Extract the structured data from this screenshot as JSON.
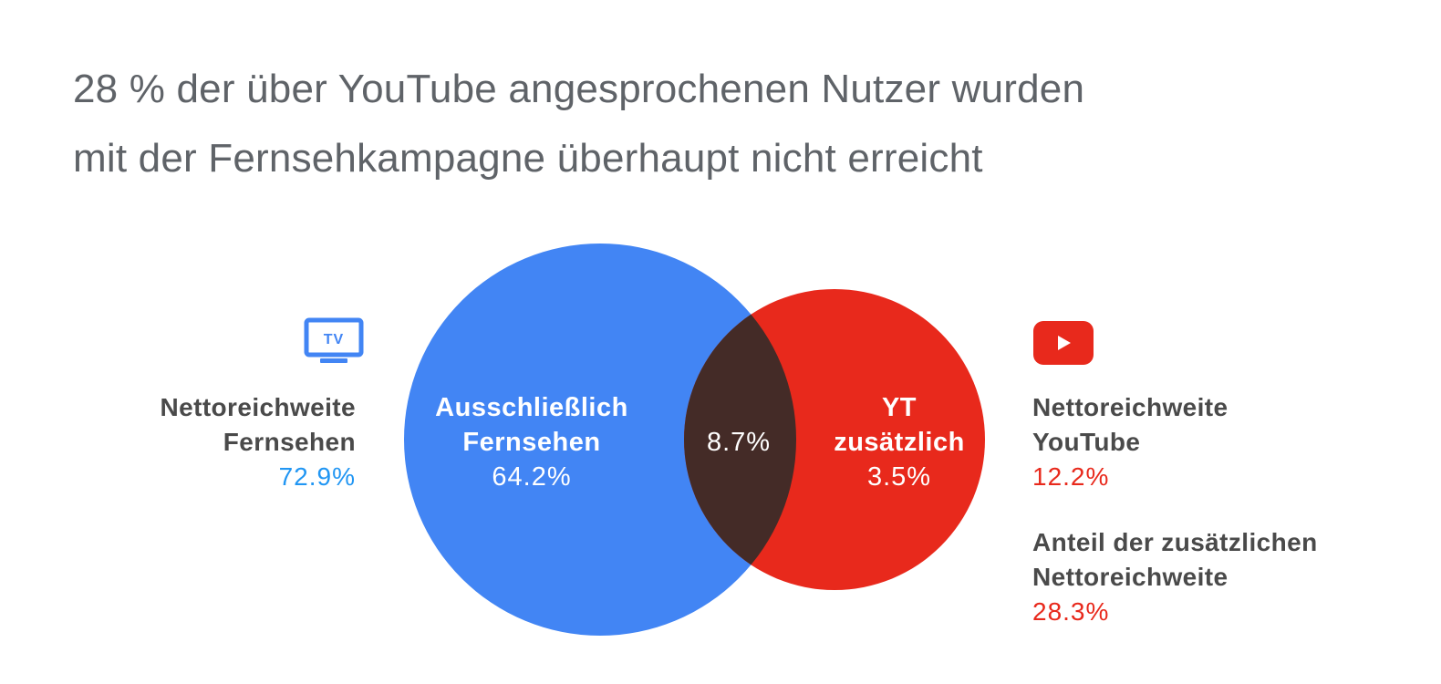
{
  "title": {
    "line1": "28 % der über YouTube angesprochenen Nutzer wurden",
    "line2": "mit der Fernsehkampagne überhaupt nicht erreicht"
  },
  "colors": {
    "tv_blue": "#4285f4",
    "yt_red": "#e8291c",
    "overlap": "#442b27",
    "text_gray": "#4a4a4a",
    "title_gray": "#5f6368"
  },
  "tv_icon": {
    "name": "tv-icon",
    "label": "TV"
  },
  "yt_icon": {
    "name": "youtube-play-icon"
  },
  "venn": {
    "tv_only": {
      "line1": "Ausschließlich",
      "line2": "Fernsehen",
      "value": "64.2%"
    },
    "overlap": {
      "value": "8.7%"
    },
    "yt_only": {
      "line1": "YT",
      "line2": "zusätzlich",
      "value": "3.5%"
    }
  },
  "left_info": {
    "line1": "Nettoreichweite",
    "line2": "Fernsehen",
    "value": "72.9%"
  },
  "right_info": {
    "line1": "Nettoreichweite",
    "line2": "YouTube",
    "value": "12.2%"
  },
  "right_info2": {
    "line1": "Anteil der zusätzlichen",
    "line2": "Nettoreichweite",
    "value": "28.3%"
  }
}
